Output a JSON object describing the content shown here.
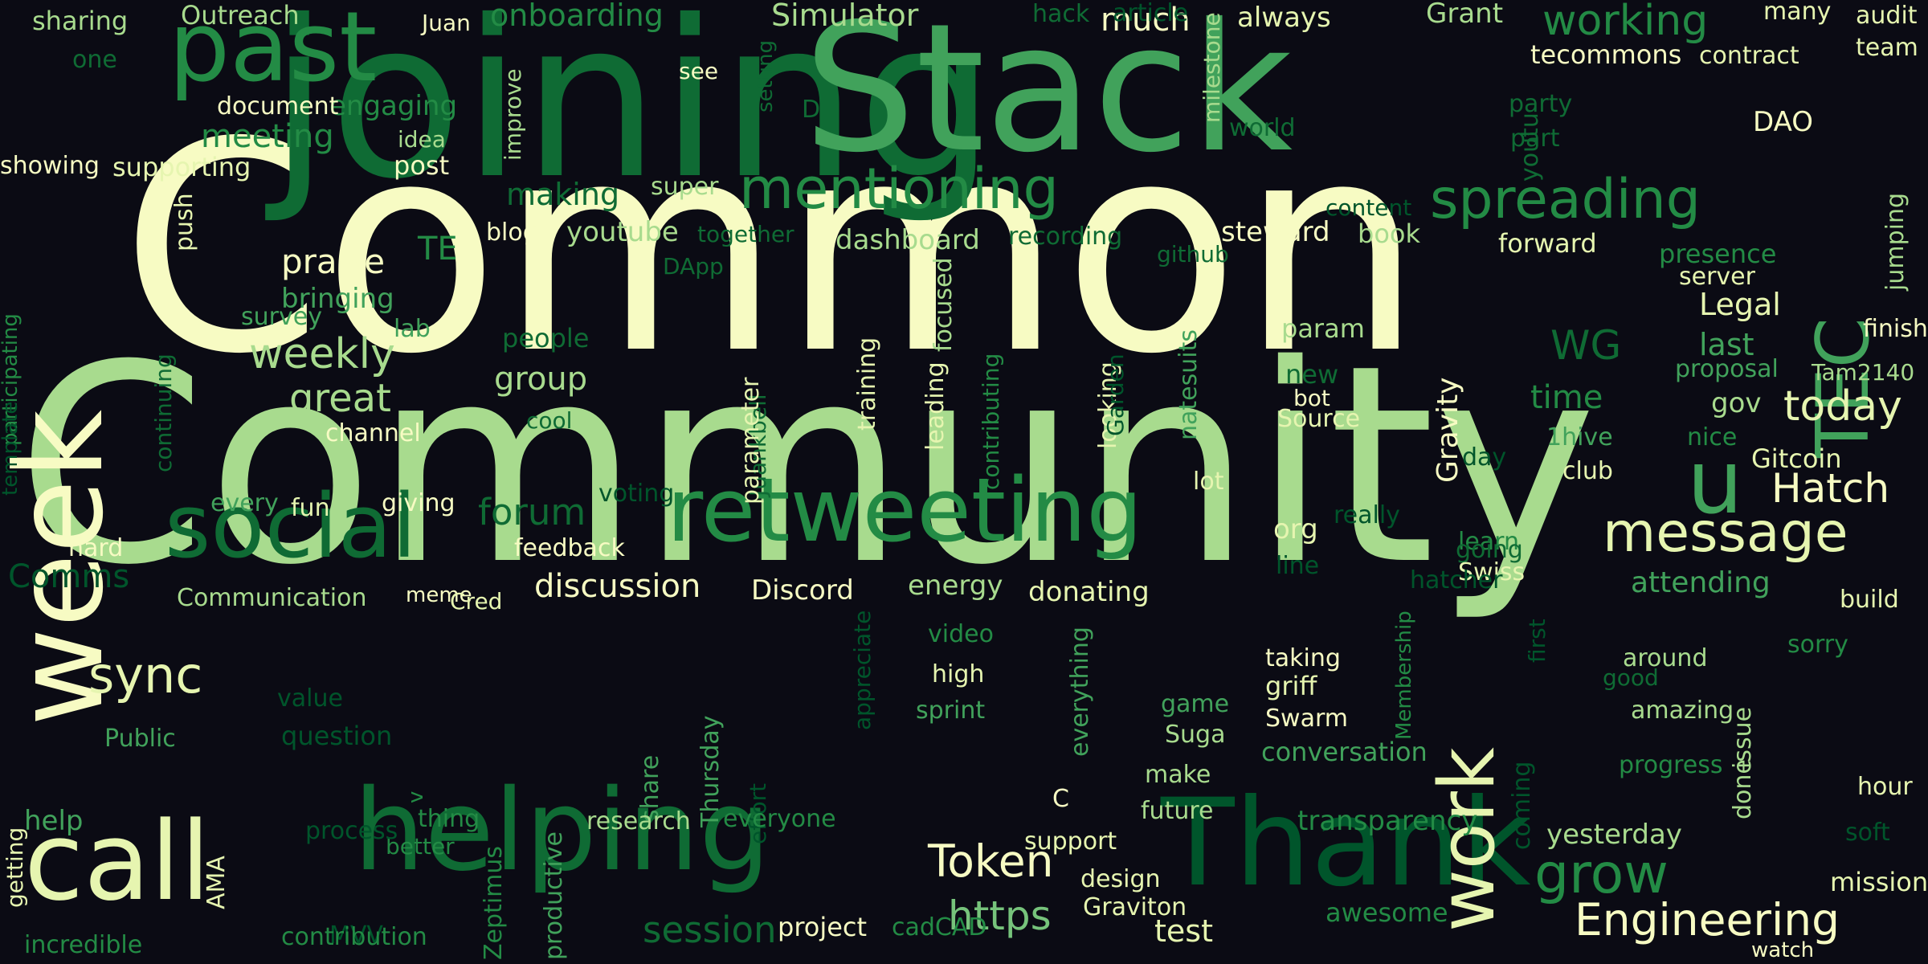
{
  "background": "#0b0b14",
  "palette": {
    "cream": "#f7fbc3",
    "pale": "#e6f5b0",
    "light": "#a8db8e",
    "mid": "#76c37b",
    "green": "#41a25b",
    "dark": "#238b45",
    "deep": "#0f6b34",
    "darkest": "#00552b"
  },
  "words": [
    "Common",
    "Community",
    "joining",
    "Stack",
    "week",
    "past",
    "retweeting",
    "social",
    "helping",
    "call",
    "Thank",
    "work",
    "mentioning",
    "message",
    "TEC",
    "spreading",
    "u",
    "sync",
    "grow",
    "Engineering",
    "https",
    "Token",
    "weekly",
    "great",
    "praise",
    "forum",
    "session",
    "today",
    "Hatch",
    "onboarding",
    "Simulator",
    "hack",
    "working",
    "Grant",
    "much",
    "always",
    "tecommons",
    "DAO",
    "meeting",
    "engaging",
    "document",
    "supporting",
    "showing",
    "sharing",
    "Outreach",
    "one",
    "Juan",
    "see",
    "post",
    "idea",
    "improve",
    "setting",
    "D",
    "milestone",
    "world",
    "party",
    "part",
    "youtu",
    "contract",
    "audit",
    "team",
    "many",
    "making",
    "super",
    "blog",
    "youtube",
    "together",
    "DApp",
    "dashboard",
    "recording",
    "steward",
    "book",
    "github",
    "content",
    "forward",
    "presence",
    "server",
    "jumping",
    "finish",
    "Legal",
    "last",
    "proposal",
    "Tam2140",
    "gov",
    "bringing",
    "lab",
    "survey",
    "people",
    "group",
    "param",
    "WG",
    "time",
    "new",
    "bot",
    "Source",
    "cool",
    "channel",
    "1hive",
    "club",
    "nice",
    "Gitcoin",
    "Gravity",
    "natesuits",
    "looking",
    "Garden",
    "contributing",
    "leading",
    "focused",
    "training",
    "Juankbell",
    "parameter",
    "s",
    "push",
    "TE",
    "participating",
    "template",
    "continuing",
    "every",
    "fun",
    "giving",
    "lot",
    "day",
    "voting",
    "really",
    "learn",
    "going",
    "org",
    "line",
    "Swiss",
    "hatcher",
    "build",
    "attending",
    "energy",
    "donating",
    "discussion",
    "Discord",
    "feedback",
    "Communication",
    "meme",
    "Cred",
    "hard",
    "Comms",
    "video",
    "high",
    "sprint",
    "appreciate",
    "everything",
    "game",
    "Suga",
    "make",
    "future",
    "C",
    "support",
    "design",
    "Graviton",
    "article",
    "taking",
    "griff",
    "Swarm",
    "conversation",
    "Membership",
    "first",
    "coming",
    "around",
    "good",
    "amazing",
    "issue",
    "progress",
    "done",
    "sorry",
    "hour",
    "soft",
    "mission",
    "watch",
    "yesterday",
    "transparency",
    "awesome",
    "test",
    "cadCAD",
    "project",
    "MVV",
    "contribution",
    "incredible",
    "getting",
    "help",
    "Public",
    "value",
    "question",
    "v",
    "better",
    "thing",
    "Zeptimus",
    "AMA",
    "process",
    "productive",
    "share",
    "Thursday",
    "effort",
    "research",
    "everyone"
  ]
}
